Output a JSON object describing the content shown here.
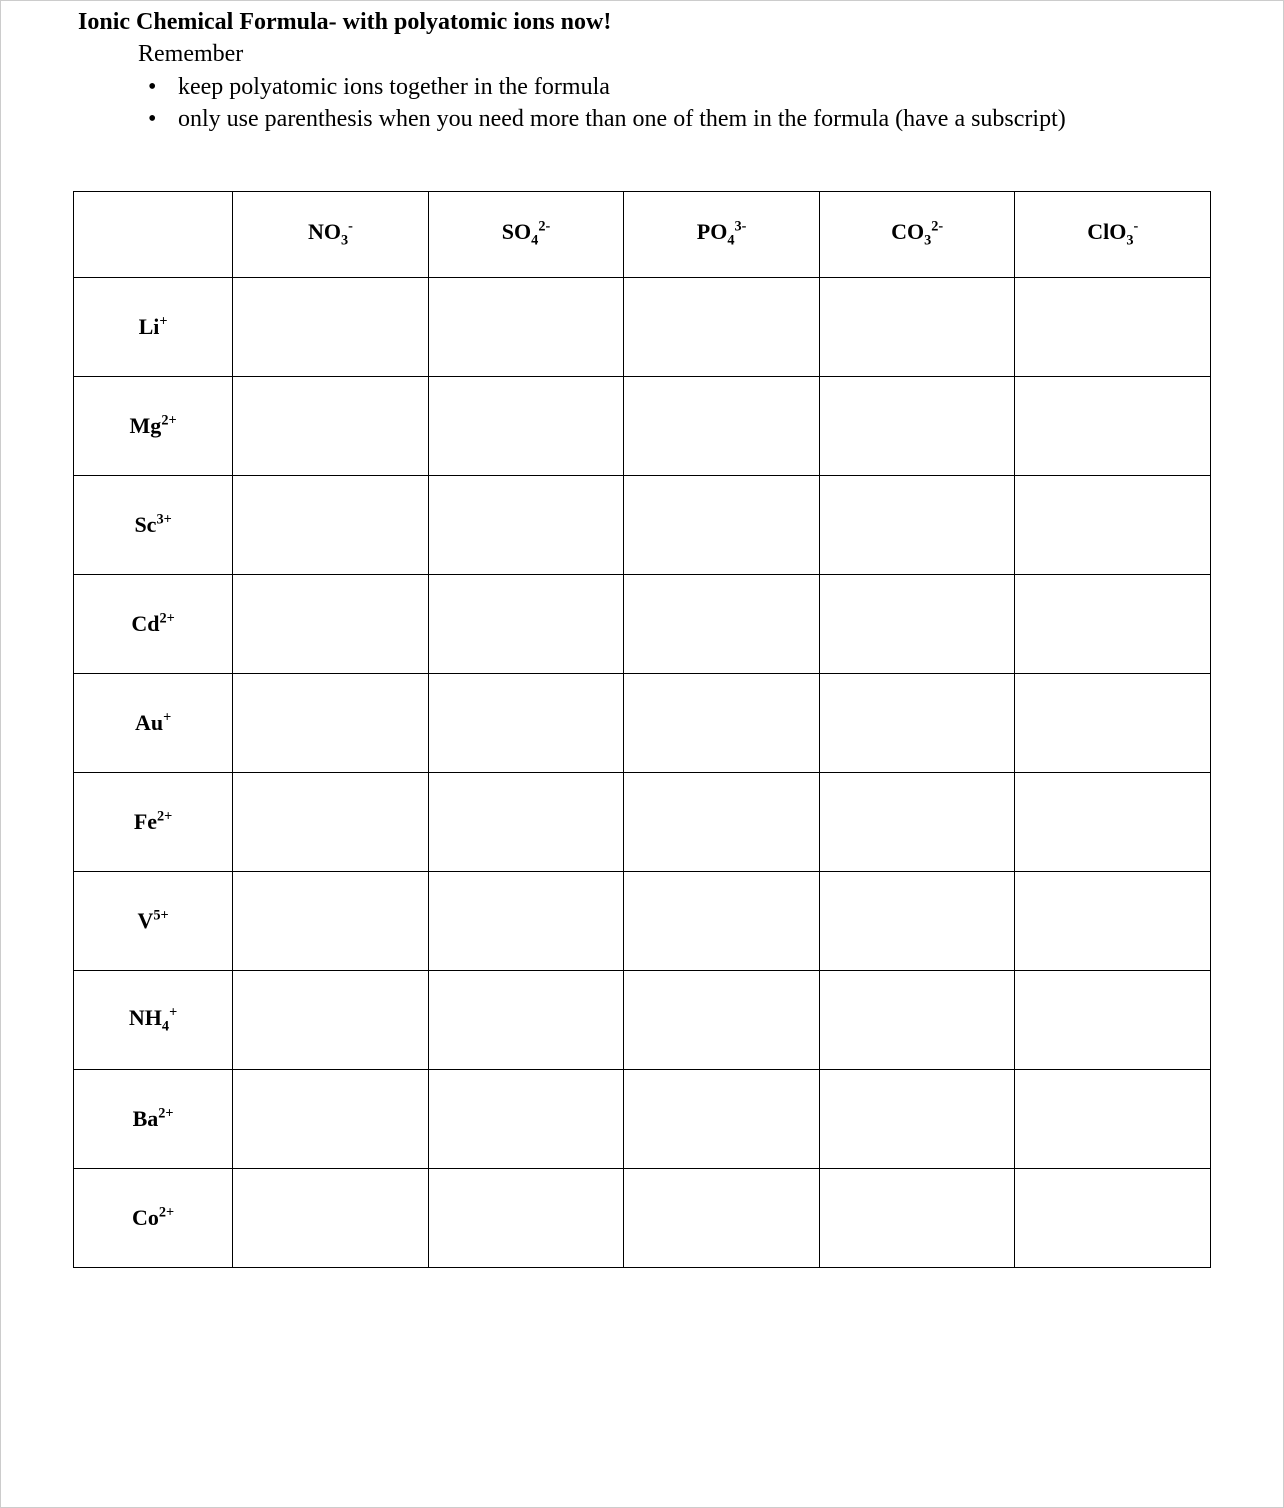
{
  "heading": {
    "title": "Ionic Chemical Formula- with polyatomic ions now!",
    "remember_label": "Remember",
    "rules": [
      "keep polyatomic ions together in the formula",
      "only use parenthesis when you need more than one of them in the formula (have a subscript)"
    ]
  },
  "table": {
    "columns": [
      {
        "parts": [
          {
            "t": "NO",
            "k": "n"
          },
          {
            "t": "3",
            "k": "sub"
          },
          {
            "t": "-",
            "k": "sup"
          }
        ]
      },
      {
        "parts": [
          {
            "t": "SO",
            "k": "n"
          },
          {
            "t": "4",
            "k": "sub"
          },
          {
            "t": "2-",
            "k": "sup"
          }
        ]
      },
      {
        "parts": [
          {
            "t": "PO",
            "k": "n"
          },
          {
            "t": "4",
            "k": "sub"
          },
          {
            "t": "3-",
            "k": "sup"
          }
        ]
      },
      {
        "parts": [
          {
            "t": "CO",
            "k": "n"
          },
          {
            "t": "3",
            "k": "sub"
          },
          {
            "t": "2-",
            "k": "sup"
          }
        ]
      },
      {
        "parts": [
          {
            "t": "ClO",
            "k": "n"
          },
          {
            "t": "3",
            "k": "sub"
          },
          {
            "t": "-",
            "k": "sup"
          }
        ]
      }
    ],
    "rows": [
      {
        "parts": [
          {
            "t": "Li",
            "k": "n"
          },
          {
            "t": "+",
            "k": "sup"
          }
        ]
      },
      {
        "parts": [
          {
            "t": "Mg",
            "k": "n"
          },
          {
            "t": "2+",
            "k": "sup"
          }
        ]
      },
      {
        "parts": [
          {
            "t": "Sc",
            "k": "n"
          },
          {
            "t": "3+",
            "k": "sup"
          }
        ]
      },
      {
        "parts": [
          {
            "t": "Cd",
            "k": "n"
          },
          {
            "t": "2+",
            "k": "sup"
          }
        ]
      },
      {
        "parts": [
          {
            "t": "Au",
            "k": "n"
          },
          {
            "t": "+",
            "k": "sup"
          }
        ]
      },
      {
        "parts": [
          {
            "t": "Fe",
            "k": "n"
          },
          {
            "t": "2+",
            "k": "sup"
          }
        ]
      },
      {
        "parts": [
          {
            "t": "V",
            "k": "n"
          },
          {
            "t": "5+",
            "k": "sup"
          }
        ]
      },
      {
        "parts": [
          {
            "t": "NH",
            "k": "n"
          },
          {
            "t": "4",
            "k": "sub"
          },
          {
            "t": "+",
            "k": "sup"
          }
        ]
      },
      {
        "parts": [
          {
            "t": "Ba",
            "k": "n"
          },
          {
            "t": "2+",
            "k": "sup"
          }
        ]
      },
      {
        "parts": [
          {
            "t": "Co",
            "k": "n"
          },
          {
            "t": "2+",
            "k": "sup"
          }
        ]
      }
    ],
    "first_col_width_pct": 14,
    "other_col_width_pct": 17.2,
    "border_color": "#000000",
    "background_color": "#ffffff",
    "header_fontsize": 22,
    "row_header_fontsize": 22
  },
  "style": {
    "page_background": "#ffffff",
    "text_color": "#000000",
    "font_family": "Times New Roman",
    "title_fontsize": 24,
    "body_fontsize": 24
  }
}
